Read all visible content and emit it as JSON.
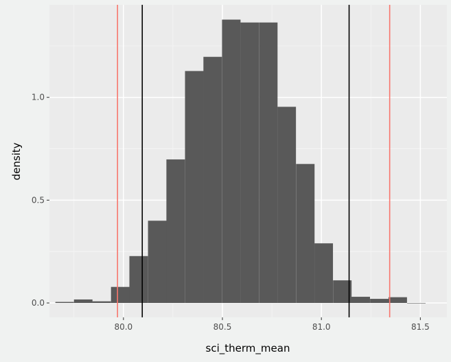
{
  "chart_data": {
    "type": "bar",
    "title": "",
    "xlabel": "sci_therm_mean",
    "ylabel": "density",
    "xlim": [
      79.626,
      81.634
    ],
    "ylim": [
      -0.07,
      1.45
    ],
    "grid": true,
    "bin_width": 0.0935,
    "bin_starts": [
      79.656,
      79.75,
      79.843,
      79.937,
      80.03,
      80.124,
      80.217,
      80.311,
      80.404,
      80.498,
      80.591,
      80.685,
      80.778,
      80.872,
      80.965,
      81.059,
      81.152,
      81.246,
      81.339,
      81.433
    ],
    "values": [
      0.005,
      0.017,
      0.008,
      0.078,
      0.228,
      0.4,
      0.698,
      1.128,
      1.197,
      1.378,
      1.364,
      1.364,
      0.954,
      0.676,
      0.29,
      0.11,
      0.03,
      0.02,
      0.028,
      0.0
    ],
    "x_ticks": [
      80.0,
      80.5,
      81.0,
      81.5
    ],
    "x_tick_labels": [
      "80.0",
      "80.5",
      "81.0",
      "81.5"
    ],
    "y_ticks": [
      0.0,
      0.5,
      1.0
    ],
    "y_tick_labels": [
      "0.0",
      "0.5",
      "1.0"
    ],
    "vlines": [
      {
        "x": 79.97,
        "color": "#f8766d"
      },
      {
        "x": 80.095,
        "color": "#000000"
      },
      {
        "x": 81.14,
        "color": "#000000"
      },
      {
        "x": 81.345,
        "color": "#f8766d"
      }
    ],
    "colors": {
      "bar": "#595959",
      "panel": "#ebebeb",
      "grid_major": "#ffffff",
      "background": "#f0f2f1"
    }
  }
}
